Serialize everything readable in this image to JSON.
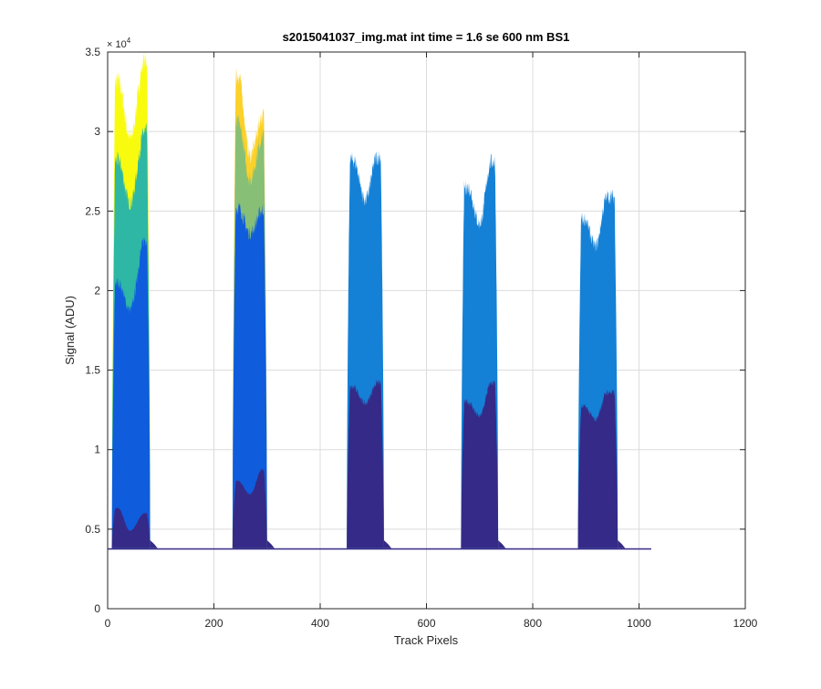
{
  "chart_data": {
    "type": "area",
    "title": "s2015041037_img.mat int time = 1.6 se  600 nm BS1",
    "xlabel": "Track Pixels",
    "ylabel": "Signal (ADU)",
    "y_exponent_label": "× 10",
    "y_exponent_power": "4",
    "xlim": [
      0,
      1200
    ],
    "ylim": [
      0,
      35000
    ],
    "xticks": [
      0,
      200,
      400,
      600,
      800,
      1000,
      1200
    ],
    "xtick_labels": [
      "0",
      "200",
      "400",
      "600",
      "800",
      "1000",
      "1200"
    ],
    "yticks": [
      0,
      5000,
      10000,
      15000,
      20000,
      25000,
      30000,
      35000
    ],
    "ytick_labels": [
      "0",
      "0.5",
      "1",
      "1.5",
      "2",
      "2.5",
      "3",
      "3.5"
    ],
    "grid": true,
    "baseline": 3800,
    "data_x_range": [
      0,
      1023
    ],
    "colormap": [
      "#352a87",
      "#0f5cdd",
      "#1481d6",
      "#06a4ca",
      "#2eb7a4",
      "#87bf77",
      "#d1bb59",
      "#fbd12a",
      "#f9fb0e"
    ],
    "bands": [
      {
        "x_start": 8,
        "x_end": 80,
        "peak_left_x": 20,
        "peak_left": 33200,
        "dip_x": 42,
        "dip": 29600,
        "peak_right_x": 70,
        "peak_right": 34500,
        "layers": [
          {
            "color": "#352a87",
            "top_left": 6300,
            "top_dip": 4900,
            "top_right": 6000
          },
          {
            "color": "#0f5cdd",
            "top_left": 20500,
            "top_dip": 18800,
            "top_right": 23200
          },
          {
            "color": "#2eb7a4",
            "top_left": 28200,
            "top_dip": 25500,
            "top_right": 30000
          },
          {
            "color": "#f9fb0e",
            "top_left": 33200,
            "top_dip": 29600,
            "top_right": 34500
          }
        ]
      },
      {
        "x_start": 235,
        "x_end": 300,
        "peak_left_x": 246,
        "peak_left": 33500,
        "dip_x": 268,
        "dip": 28500,
        "peak_right_x": 292,
        "peak_right": 31000,
        "layers": [
          {
            "color": "#352a87",
            "top_left": 8000,
            "top_dip": 7200,
            "top_right": 8800
          },
          {
            "color": "#0f5cdd",
            "top_left": 25200,
            "top_dip": 23600,
            "top_right": 25100
          },
          {
            "color": "#87bf77",
            "top_left": 30500,
            "top_dip": 27000,
            "top_right": 29700
          },
          {
            "color": "#fbd12a",
            "top_left": 33500,
            "top_dip": 28500,
            "top_right": 31000
          }
        ]
      },
      {
        "x_start": 450,
        "x_end": 520,
        "peak_left_x": 463,
        "peak_left": 28200,
        "dip_x": 485,
        "dip": 25700,
        "peak_right_x": 507,
        "peak_right": 28400,
        "layers": [
          {
            "color": "#352a87",
            "top_left": 13900,
            "top_dip": 12900,
            "top_right": 14200
          },
          {
            "color": "#1481d6",
            "top_left": 28200,
            "top_dip": 25700,
            "top_right": 28400
          }
        ]
      },
      {
        "x_start": 665,
        "x_end": 735,
        "peak_left_x": 678,
        "peak_left": 26500,
        "dip_x": 700,
        "dip": 24200,
        "peak_right_x": 722,
        "peak_right": 28100,
        "layers": [
          {
            "color": "#352a87",
            "top_left": 13000,
            "top_dip": 12100,
            "top_right": 14200
          },
          {
            "color": "#1481d6",
            "top_left": 26500,
            "top_dip": 24200,
            "top_right": 28100
          }
        ]
      },
      {
        "x_start": 885,
        "x_end": 960,
        "peak_left_x": 897,
        "peak_left": 24500,
        "dip_x": 918,
        "dip": 22800,
        "peak_right_x": 940,
        "peak_right": 25900,
        "layers": [
          {
            "color": "#352a87",
            "top_left": 12700,
            "top_dip": 11900,
            "top_right": 13600
          },
          {
            "color": "#1481d6",
            "top_left": 24500,
            "top_dip": 22800,
            "top_right": 25900
          }
        ]
      }
    ]
  }
}
